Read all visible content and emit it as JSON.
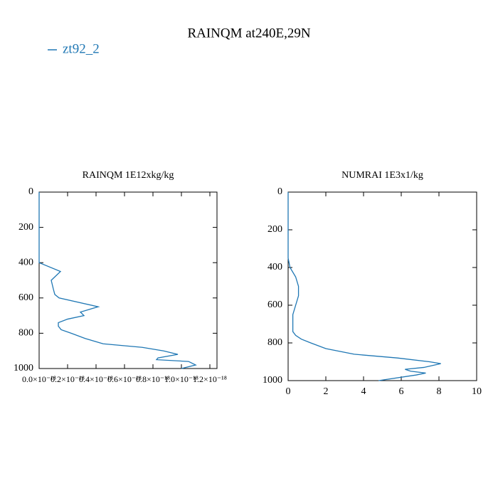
{
  "title": "RAINQM at240E,29N",
  "chart_data": [
    {
      "type": "line",
      "title": "RAINQM  1E12xkg/kg",
      "series": [
        {
          "name": "zt92_2",
          "color": "#1f77b4",
          "x": [
            0,
            0,
            0,
            1.5e-19,
            8.5e-20,
            1e-19,
            1.1e-19,
            1.4e-19,
            4.15e-19,
            2.9e-19,
            3.15e-19,
            2e-19,
            1.35e-19,
            1.35e-19,
            1.55e-19,
            2.25e-19,
            3.25e-19,
            4.5e-19,
            7.25e-19,
            8.75e-19,
            9.75e-19,
            8.35e-19,
            8.25e-19,
            1.05e-18,
            1.1e-18,
            1e-18
          ],
          "y": [
            0,
            350,
            400,
            450,
            500,
            550,
            580,
            600,
            650,
            680,
            700,
            720,
            740,
            760,
            780,
            800,
            830,
            860,
            880,
            900,
            920,
            940,
            950,
            960,
            980,
            1000
          ]
        }
      ],
      "xlim": [
        0,
        1.25e-18
      ],
      "xticks": [
        {
          "value": 0,
          "label": "0.0×10⁻¹⁸"
        },
        {
          "value": 2e-19,
          "label": "0.2×10⁻¹⁸"
        },
        {
          "value": 4e-19,
          "label": "0.4×10⁻¹⁸"
        },
        {
          "value": 6e-19,
          "label": "0.6×10⁻¹⁸"
        },
        {
          "value": 8e-19,
          "label": "0.8×10⁻¹⁸"
        },
        {
          "value": 1e-18,
          "label": "1.0×10⁻¹⁸"
        },
        {
          "value": 1.2e-18,
          "label": "1.2×10⁻¹⁸"
        }
      ],
      "ylim": [
        0,
        1000
      ],
      "y_reversed": true,
      "yticks": [
        0,
        200,
        400,
        600,
        800,
        1000
      ]
    },
    {
      "type": "line",
      "title": "NUMRAI  1E3x1/kg",
      "series": [
        {
          "name": "zt92_2",
          "color": "#1f77b4",
          "x": [
            0,
            0,
            0.1,
            0.4,
            0.55,
            0.55,
            0.4,
            0.25,
            0.25,
            0.25,
            0.4,
            0.7,
            1.2,
            2.0,
            3.5,
            5.8,
            7.5,
            8.1,
            7.2,
            6.2,
            6.5,
            7.3,
            6.8,
            4.8
          ],
          "y": [
            0,
            350,
            400,
            450,
            500,
            550,
            600,
            650,
            700,
            740,
            760,
            780,
            800,
            830,
            860,
            880,
            900,
            910,
            930,
            940,
            950,
            960,
            970,
            1000
          ]
        }
      ],
      "xlim": [
        0,
        10
      ],
      "xticks": [
        0,
        2,
        4,
        6,
        8,
        10
      ],
      "ylim": [
        0,
        1000
      ],
      "y_reversed": true,
      "yticks": [
        0,
        200,
        400,
        600,
        800,
        1000
      ]
    }
  ]
}
